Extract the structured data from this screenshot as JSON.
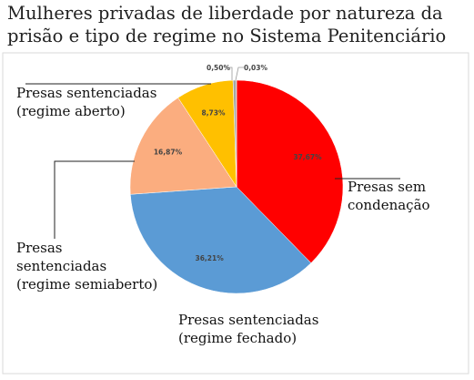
{
  "chart_data": {
    "type": "pie",
    "title": [
      "Mulheres privadas de liberdade por natureza da",
      "prisão e tipo de regime no Sistema Penitenciário"
    ],
    "categories": [
      "Presas sem\ncondenação",
      "Presas sentenciadas\n(regime fechado)",
      "Presas\nsentenciadas\n(regime semiaberto)",
      "Presas sentenciadas\n(regime aberto)",
      null,
      null
    ],
    "values": [
      37.67,
      36.21,
      16.87,
      8.73,
      0.5,
      0.03
    ],
    "value_labels": [
      "37,67%",
      "36,21%",
      "16,87%",
      "8,73%",
      "0,50%",
      "0,03%"
    ],
    "colors": [
      "#ff0000",
      "#5b9bd5",
      "#fbad7f",
      "#ffc000",
      "#a5a5a5",
      "#4472c4"
    ]
  }
}
